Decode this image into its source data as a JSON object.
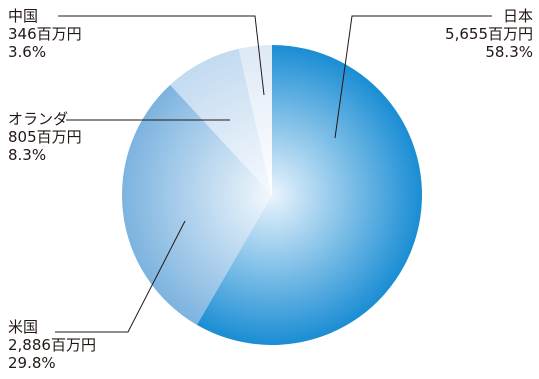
{
  "chart_data": {
    "type": "pie",
    "title": "",
    "slices": [
      {
        "name": "日本",
        "amount": "5,655百万円",
        "percent": "58.3%",
        "value": 5655,
        "share": 58.3
      },
      {
        "name": "米国",
        "amount": "2,886百万円",
        "percent": "29.8%",
        "value": 2886,
        "share": 29.8
      },
      {
        "name": "オランダ",
        "amount": "805百万円",
        "percent": "8.3%",
        "value": 805,
        "share": 8.3
      },
      {
        "name": "中国",
        "amount": "346百万円",
        "percent": "3.6%",
        "value": 346,
        "share": 3.6
      }
    ],
    "colors": {
      "日本": [
        "#eaf4fc",
        "#1a8dd4"
      ],
      "米国": [
        "#f2f8fd",
        "#7cb3df"
      ],
      "オランダ": [
        "#f6fafe",
        "#c3daf0"
      ],
      "中国": [
        "#ffffff",
        "#dde9f6"
      ],
      "leader_line": "#231815"
    },
    "legend": "none"
  }
}
